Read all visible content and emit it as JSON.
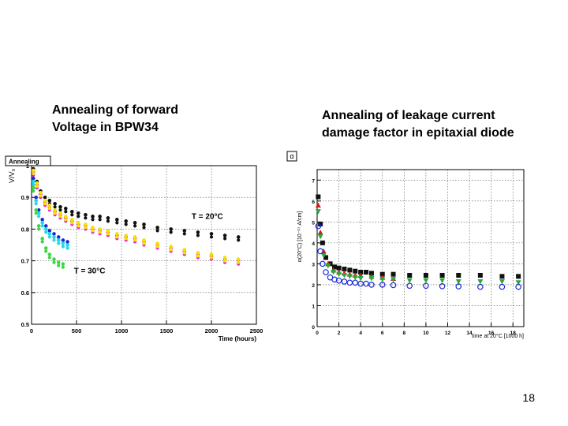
{
  "slide": {
    "number": "18",
    "caption_left": {
      "line1": "Annealing of forward",
      "line2": "Voltage in BPW34"
    },
    "caption_right": {
      "line1": "Annealing of leakage current",
      "line2": "damage factor in epitaxial diode"
    }
  },
  "chart_data": [
    {
      "type": "scatter",
      "title": "Annealing",
      "xlabel": "Time (hours)",
      "ylabel": "V/V₀",
      "xlim": [
        0,
        2500
      ],
      "ylim": [
        0.5,
        1.0
      ],
      "x_ticks": [
        0,
        500,
        1000,
        1500,
        2000,
        2500
      ],
      "y_ticks": [
        0.5,
        0.6,
        0.7,
        0.8,
        0.9,
        1.0
      ],
      "x_tick_labels": [
        "0",
        "500",
        "1000",
        "1500",
        "2000",
        "2500"
      ],
      "y_tick_labels": [
        "0.5",
        "0.6",
        "0.7",
        "0.8",
        "0.9",
        "1"
      ],
      "grid": true,
      "annotations": [
        {
          "text": "T = 20°C",
          "x": 1780,
          "y": 0.832
        },
        {
          "text": "T = 30°C",
          "x": 470,
          "y": 0.66
        }
      ],
      "series": [
        {
          "name": "T=20C black",
          "color": "#111111",
          "x": [
            20,
            60,
            100,
            150,
            200,
            260,
            320,
            380,
            450,
            520,
            600,
            680,
            760,
            850,
            950,
            1050,
            1150,
            1250,
            1400,
            1550,
            1700,
            1850,
            2000,
            2150,
            2300
          ],
          "y": [
            0.99,
            0.95,
            0.92,
            0.9,
            0.89,
            0.88,
            0.87,
            0.865,
            0.855,
            0.85,
            0.845,
            0.84,
            0.84,
            0.835,
            0.83,
            0.825,
            0.82,
            0.815,
            0.805,
            0.8,
            0.795,
            0.79,
            0.785,
            0.78,
            0.775
          ]
        },
        {
          "name": "T=20C magenta",
          "color": "#ee1dd8",
          "x": [
            20,
            60,
            100,
            150,
            200,
            260,
            320,
            380,
            450,
            520,
            600,
            680,
            760,
            850,
            950,
            1050,
            1150,
            1250,
            1400,
            1550,
            1700,
            1850,
            2000,
            2150,
            2300
          ],
          "y": [
            0.98,
            0.94,
            0.91,
            0.885,
            0.87,
            0.855,
            0.845,
            0.835,
            0.825,
            0.815,
            0.81,
            0.8,
            0.795,
            0.79,
            0.78,
            0.775,
            0.77,
            0.76,
            0.75,
            0.74,
            0.73,
            0.72,
            0.715,
            0.705,
            0.7
          ]
        },
        {
          "name": "T=20C yellow",
          "color": "#f2e200",
          "x": [
            20,
            60,
            100,
            150,
            200,
            260,
            320,
            380,
            450,
            520,
            600,
            680,
            760,
            850,
            950,
            1050,
            1150,
            1250,
            1400,
            1550,
            1700,
            1850,
            2000,
            2150,
            2300
          ],
          "y": [
            0.985,
            0.945,
            0.915,
            0.89,
            0.875,
            0.86,
            0.85,
            0.84,
            0.83,
            0.82,
            0.815,
            0.805,
            0.8,
            0.795,
            0.785,
            0.78,
            0.775,
            0.765,
            0.755,
            0.745,
            0.735,
            0.725,
            0.72,
            0.71,
            0.705
          ]
        },
        {
          "name": "T=30C blue",
          "color": "#1a2bd6",
          "x": [
            20,
            50,
            80,
            120,
            160,
            200,
            250,
            300,
            350,
            400
          ],
          "y": [
            0.96,
            0.9,
            0.86,
            0.83,
            0.81,
            0.795,
            0.785,
            0.775,
            0.765,
            0.76
          ]
        },
        {
          "name": "T=30C cyan",
          "color": "#22d8e8",
          "x": [
            20,
            50,
            80,
            120,
            160,
            200,
            250,
            300,
            350,
            400
          ],
          "y": [
            0.95,
            0.89,
            0.85,
            0.82,
            0.8,
            0.785,
            0.775,
            0.765,
            0.755,
            0.75
          ]
        },
        {
          "name": "T=30C green",
          "color": "#3fd645",
          "x": [
            20,
            50,
            80,
            120,
            160,
            200,
            250,
            300,
            350
          ],
          "y": [
            0.93,
            0.86,
            0.81,
            0.77,
            0.74,
            0.72,
            0.705,
            0.695,
            0.69
          ]
        }
      ]
    },
    {
      "type": "scatter",
      "title": "α",
      "xlabel": "time at 20°C [1000 h]",
      "ylabel": "α(20°C) [10⁻¹⁷ A/cm]",
      "xlim": [
        0,
        19
      ],
      "ylim": [
        0,
        7.5
      ],
      "x_ticks": [
        0,
        2,
        4,
        6,
        8,
        10,
        12,
        14,
        16,
        18
      ],
      "y_ticks": [
        0,
        1,
        2,
        3,
        4,
        5,
        6,
        7
      ],
      "x_tick_labels": [
        "0",
        "2",
        "4",
        "6",
        "8",
        "10",
        "12",
        "14",
        "16",
        "18"
      ],
      "y_tick_labels": [
        "0",
        "1",
        "2",
        "3",
        "4",
        "5",
        "6",
        "7"
      ],
      "grid": true,
      "series": [
        {
          "name": "black squares",
          "color": "#111111",
          "marker": "square",
          "x": [
            0.1,
            0.3,
            0.5,
            0.8,
            1.2,
            1.6,
            2,
            2.5,
            3,
            3.5,
            4,
            4.5,
            5,
            6,
            7,
            8.5,
            10,
            11.5,
            13,
            15,
            17,
            18.5
          ],
          "y": [
            6.2,
            4.9,
            4.0,
            3.3,
            3.0,
            2.85,
            2.8,
            2.75,
            2.7,
            2.65,
            2.6,
            2.6,
            2.55,
            2.5,
            2.5,
            2.45,
            2.45,
            2.45,
            2.45,
            2.45,
            2.4,
            2.4
          ]
        },
        {
          "name": "red triangles",
          "color": "#d61a1a",
          "marker": "triangle",
          "x": [
            0.1,
            0.3,
            0.6,
            1,
            1.5,
            2,
            2.5,
            3,
            3.5,
            4,
            5,
            6,
            7
          ],
          "y": [
            5.8,
            4.5,
            3.6,
            3.0,
            2.7,
            2.6,
            2.55,
            2.5,
            2.45,
            2.45,
            2.4,
            2.35,
            2.3
          ]
        },
        {
          "name": "green triangles",
          "color": "#2aa83a",
          "marker": "triangle-down",
          "x": [
            0.1,
            0.3,
            0.6,
            1,
            1.5,
            2,
            2.5,
            3,
            3.5,
            4,
            5,
            6,
            7,
            8.5,
            10,
            11.5,
            13,
            15,
            17,
            18.5
          ],
          "y": [
            5.5,
            4.3,
            3.4,
            2.9,
            2.6,
            2.5,
            2.45,
            2.4,
            2.35,
            2.3,
            2.3,
            2.25,
            2.25,
            2.2,
            2.2,
            2.2,
            2.15,
            2.15,
            2.15,
            2.1
          ]
        },
        {
          "name": "blue circles",
          "color": "#1a2bd6",
          "marker": "open-circle",
          "x": [
            0.1,
            0.3,
            0.5,
            0.8,
            1.2,
            1.6,
            2,
            2.5,
            3,
            3.5,
            4,
            4.5,
            5,
            6,
            7,
            8.5,
            10,
            11.5,
            13,
            15,
            17,
            18.5
          ],
          "y": [
            4.8,
            3.6,
            3.0,
            2.6,
            2.35,
            2.25,
            2.2,
            2.15,
            2.1,
            2.1,
            2.05,
            2.05,
            2.0,
            2.0,
            1.98,
            1.95,
            1.95,
            1.93,
            1.92,
            1.9,
            1.9,
            1.9
          ]
        }
      ]
    }
  ]
}
